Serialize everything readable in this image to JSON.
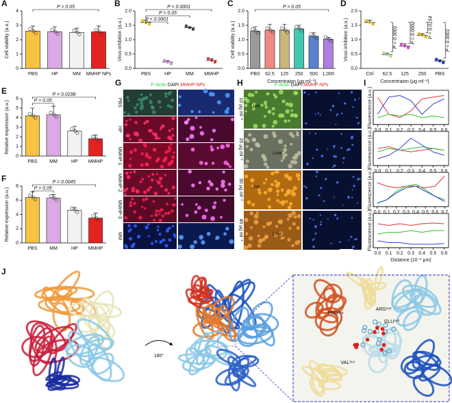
{
  "chart_data": [
    {
      "panel": "A",
      "type": "bar",
      "y_label": "Cell viability (a.u.)",
      "categories": [
        "PBS",
        "HP",
        "MM",
        "MMHP NPs"
      ],
      "values": [
        2.6,
        2.55,
        2.5,
        2.55
      ],
      "errors": [
        0.35,
        0.35,
        0.3,
        0.4
      ],
      "colors": [
        "#f6c343",
        "#dba9e3",
        "#f2f2f2",
        "#e42320"
      ],
      "ylim": [
        0,
        4
      ],
      "yticks": [
        0,
        1,
        2,
        3,
        4
      ],
      "annotations": [
        "P > 0.05"
      ]
    },
    {
      "panel": "B",
      "type": "dot",
      "y_label": "Virus inhibition (a.u.)",
      "categories": [
        "PBS",
        "HP",
        "MM",
        "MMHP"
      ],
      "values": [
        1.6,
        0.22,
        1.42,
        0.28
      ],
      "errors": [
        0.08,
        0.05,
        0.02,
        0.06
      ],
      "colors": [
        "#f0b429",
        "#d48be0",
        "#444444",
        "#e03030"
      ],
      "ylim": [
        0,
        2
      ],
      "yticks": [
        {
          "value": 0,
          "label": "0.0"
        },
        0.5,
        {
          "value": 1,
          "label": "1.0"
        },
        1.5,
        {
          "value": 2,
          "label": "2.0"
        }
      ],
      "annotations": [
        "P < 0.0001",
        "P > 0.05",
        "P < 0.0001"
      ]
    },
    {
      "panel": "C",
      "type": "bar",
      "y_label": "Cell viability (a.u.)",
      "x_label": "Concentraion (μg ml⁻¹)",
      "categories": [
        "PBS",
        "62.5",
        "125",
        "250",
        "500",
        "1,000"
      ],
      "values": [
        1.3,
        1.33,
        1.33,
        1.38,
        1.12,
        1.02
      ],
      "errors": [
        0.15,
        0.2,
        0.2,
        0.12,
        0.12,
        0.06
      ],
      "colors": [
        "#9a9a9a",
        "#f08a80",
        "#c8b67a",
        "#40c9b0",
        "#5a80d0",
        "#b07ee0"
      ],
      "ylim": [
        0,
        2
      ],
      "yticks": [
        {
          "value": 0,
          "label": "0.0"
        },
        0.5,
        {
          "value": 1,
          "label": "1.0"
        },
        1.5,
        {
          "value": 2,
          "label": "2.0"
        }
      ],
      "annotations": [
        "P > 0.05"
      ]
    },
    {
      "panel": "D",
      "type": "dot",
      "y_label": "Virus inhibition (a.u.)",
      "x_label": "Concentraion (μg ml⁻¹)",
      "categories": [
        "Ctrl",
        "62.5",
        "125",
        "250",
        "PBS"
      ],
      "values": [
        1.6,
        0.48,
        0.78,
        1.15,
        0.26
      ],
      "errors": [
        0.08,
        0.05,
        0.08,
        0.06,
        0.04
      ],
      "colors": [
        "#f0b429",
        "#a8e08a",
        "#e040d0",
        "#e0c020",
        "#2030d0"
      ],
      "ylim": [
        0,
        2
      ],
      "yticks": [
        {
          "value": 0,
          "label": "0.0"
        },
        0.5,
        {
          "value": 1,
          "label": "1.0"
        },
        1.5,
        {
          "value": 2,
          "label": "2.0"
        }
      ],
      "annotations": [
        "P < 0.0001",
        "P = 0.0002",
        "P = 0.0154",
        "P < 0.0001"
      ]
    },
    {
      "panel": "E",
      "type": "bar",
      "y_label": "Relative expression (a.u.)",
      "categories": [
        "PBS",
        "MM",
        "HP",
        "MMHP"
      ],
      "values": [
        4.2,
        4.3,
        2.6,
        1.8
      ],
      "errors": [
        0.8,
        0.9,
        0.5,
        0.4
      ],
      "colors": [
        "#f6c343",
        "#dba9e3",
        "#f2f2f2",
        "#e42320"
      ],
      "ylim": [
        0,
        6
      ],
      "yticks": [
        0,
        1,
        2,
        3,
        4,
        5,
        6
      ],
      "annotations": [
        "P = 0.0198",
        "P > 0.05"
      ]
    },
    {
      "panel": "F",
      "type": "bar",
      "y_label": "Relative expression (a.u.)",
      "categories": [
        "PBS",
        "MM",
        "HP",
        "MMHP"
      ],
      "values": [
        6.4,
        6.3,
        4.6,
        3.5
      ],
      "errors": [
        0.8,
        0.5,
        0.4,
        0.7
      ],
      "colors": [
        "#f6c343",
        "#dba9e3",
        "#f2f2f2",
        "#e42320"
      ],
      "ylim": [
        0,
        8
      ],
      "yticks": [
        0,
        2,
        4,
        6,
        8
      ],
      "annotations": [
        "P = 0.0045",
        "P > 0.05"
      ]
    },
    {
      "panel": "I",
      "type": "line",
      "y_label": "Fluorescence (a.u.)",
      "x": [
        0,
        0.1,
        0.2,
        0.3,
        0.4,
        0.5,
        0.6
      ],
      "xlim": [
        -0.04,
        0.64
      ],
      "ylim": [
        0,
        1
      ],
      "xticks": [
        {
          "value": 0,
          "label": "0.0"
        },
        0.1,
        0.2,
        0.3,
        0.4,
        0.5,
        0.6
      ],
      "series": [
        {
          "color": "#e03030",
          "values": [
            0.8,
            0.3,
            0.2,
            0.4,
            0.75,
            0.8,
            0.85
          ]
        },
        {
          "color": "#30c030",
          "values": [
            0.2,
            0.3,
            0.25,
            0.3,
            0.2,
            0.25,
            0.2
          ]
        },
        {
          "color": "#3040d0",
          "values": [
            0.3,
            0.8,
            0.85,
            0.7,
            0.3,
            0.6,
            0.75
          ]
        }
      ]
    },
    {
      "type": "line",
      "y_label": "Fluorescence (a.u.)",
      "x": [
        0,
        0.1,
        0.2,
        0.3,
        0.4,
        0.5,
        0.6
      ],
      "xlim": [
        -0.04,
        0.64
      ],
      "ylim": [
        0,
        1
      ],
      "xticks": [
        {
          "value": 0,
          "label": "0.0"
        },
        0.1,
        0.2,
        0.3,
        0.4,
        0.5,
        0.6
      ],
      "series": [
        {
          "color": "#e03030",
          "values": [
            0.5,
            0.55,
            0.45,
            0.4,
            0.45,
            0.5,
            0.45
          ]
        },
        {
          "color": "#30c030",
          "values": [
            0.4,
            0.5,
            0.45,
            0.5,
            0.55,
            0.5,
            0.45
          ]
        },
        {
          "color": "#3040d0",
          "values": [
            0.2,
            0.3,
            0.5,
            0.8,
            0.6,
            0.4,
            0.3
          ]
        }
      ]
    },
    {
      "type": "line",
      "y_label": "Fluorescence (a.u.)",
      "x": [
        0,
        0.1,
        0.2,
        0.3,
        0.4,
        0.5,
        0.6,
        0.7
      ],
      "xlim": [
        -0.04,
        0.74
      ],
      "ylim": [
        0,
        1
      ],
      "xticks": [
        {
          "value": 0,
          "label": "0.0"
        },
        0.1,
        0.2,
        0.3,
        0.4,
        0.5,
        0.6,
        0.7
      ],
      "series": [
        {
          "color": "#e03030",
          "values": [
            0.7,
            0.6,
            0.55,
            0.6,
            0.6,
            0.55,
            0.6,
            0.9
          ]
        },
        {
          "color": "#30c030",
          "values": [
            0.1,
            0.2,
            0.45,
            0.6,
            0.65,
            0.5,
            0.3,
            0.2
          ]
        },
        {
          "color": "#3040d0",
          "values": [
            0.1,
            0.2,
            0.4,
            0.55,
            0.6,
            0.45,
            0.3,
            0.15
          ]
        }
      ]
    },
    {
      "type": "line",
      "y_label": "Fluorescence (a.u.)",
      "x_label": "Distance (10⁻¹ μm)",
      "x": [
        0,
        0.1,
        0.2,
        0.3,
        0.4,
        0.5,
        0.6
      ],
      "xlim": [
        -0.04,
        0.64
      ],
      "ylim": [
        0,
        1
      ],
      "xticks": [
        {
          "value": 0,
          "label": "0.0"
        },
        0.1,
        0.2,
        0.3,
        0.4,
        0.5,
        0.6
      ],
      "series": [
        {
          "color": "#e03030",
          "values": [
            0.7,
            0.65,
            0.7,
            0.65,
            0.7,
            0.72,
            0.7
          ]
        },
        {
          "color": "#30c030",
          "values": [
            0.4,
            0.45,
            0.45,
            0.5,
            0.45,
            0.5,
            0.5
          ]
        },
        {
          "color": "#3040d0",
          "values": [
            0.2,
            0.15,
            0.15,
            0.1,
            0.1,
            0.1,
            0.12
          ]
        }
      ]
    }
  ],
  "figure_G": {
    "panel": "G",
    "header": [
      "F-Actin",
      "DAPI",
      "MMHP NPs"
    ],
    "rows": [
      "PBS",
      "HP",
      "MMHP-1",
      "MMHP-2",
      "MMHP-3",
      "MM"
    ]
  },
  "figure_H": {
    "panel": "H",
    "header": [
      "F-Actin",
      "DAPI",
      "MMHP NPs"
    ],
    "rows": [
      "10 μg ml⁻¹",
      "20 μg ml⁻¹",
      "30 μg ml⁻¹",
      "40 μg ml⁻¹"
    ],
    "annotations": [
      "Line",
      "Line",
      "Line",
      "Line"
    ]
  },
  "figure_J": {
    "panel": "J",
    "rotation": "180°",
    "residues": [
      "PRO³⁵⁸",
      "ARG³⁴²",
      "GLU³⁴³",
      "VAL³⁶⁴"
    ]
  }
}
